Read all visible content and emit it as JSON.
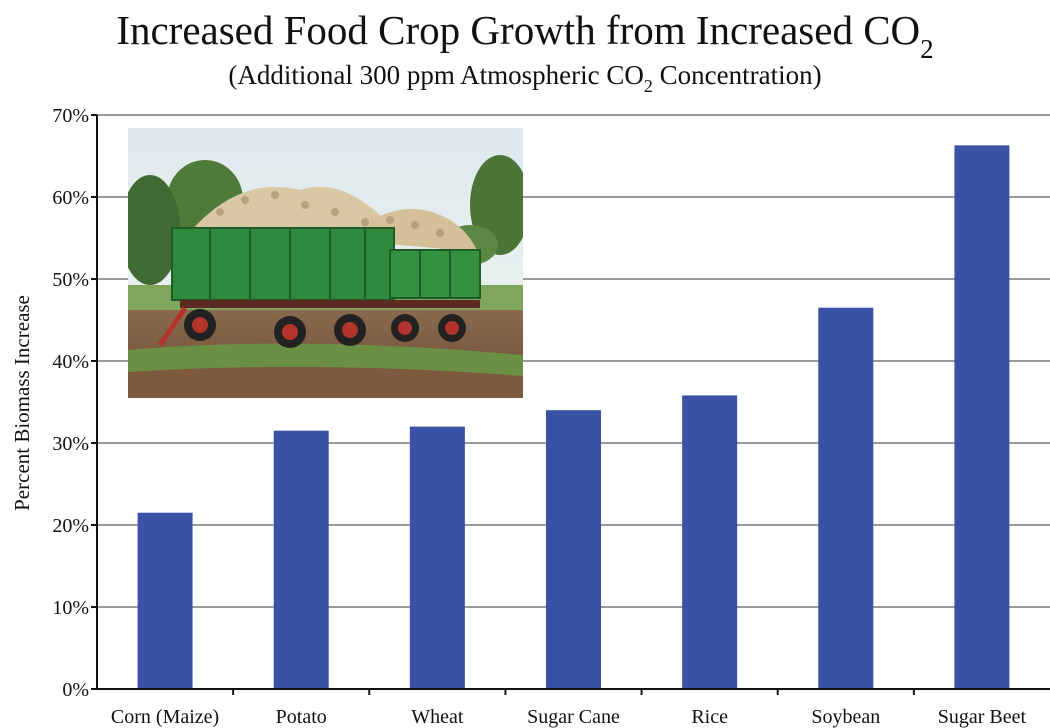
{
  "chart_data": {
    "type": "bar",
    "title": "Increased Food Crop Growth from Increased CO",
    "title_subscript": "2",
    "subtitle_before": "(Additional 300 ppm Atmospheric CO",
    "subtitle_subscript": "2",
    "subtitle_after": " Concentration)",
    "ylabel": "Percent Biomass Increase",
    "xlabel": "",
    "ylim": [
      0,
      70
    ],
    "yticks": [
      0,
      10,
      20,
      30,
      40,
      50,
      60,
      70
    ],
    "ytick_labels": [
      "0%",
      "10%",
      "20%",
      "30%",
      "40%",
      "50%",
      "60%",
      "70%"
    ],
    "categories": [
      "Corn (Maize)",
      "Potato",
      "Wheat",
      "Sugar Cane",
      "Rice",
      "Soybean",
      "Sugar Beet"
    ],
    "values": [
      21.5,
      31.5,
      32,
      34,
      35.8,
      46.5,
      66.3
    ],
    "grid": true,
    "bar_color": "#3a52a5",
    "grid_color": "#7a7a7a",
    "inset_photo": "photo of green farm trailers loaded with harvested sugar beets"
  }
}
